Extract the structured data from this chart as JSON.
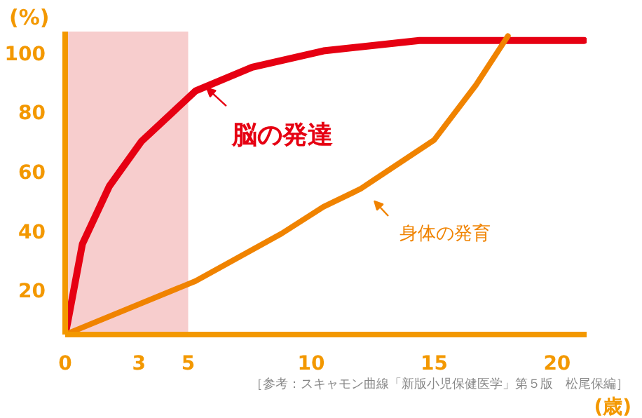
{
  "chart_data": {
    "type": "line",
    "xlim": [
      0,
      21.2
    ],
    "ylim": [
      5,
      107
    ],
    "xticks": [
      0,
      3,
      5,
      10,
      15,
      20
    ],
    "yticks": [
      20,
      40,
      60,
      80,
      100
    ],
    "xlabel": "(歳)",
    "ylabel": "(%)",
    "grid": false,
    "marker": "none",
    "line_style": "solid",
    "bands": [
      {
        "axis": "x",
        "from": 0,
        "to": 5,
        "color": "#f7cdcd"
      }
    ],
    "series": [
      {
        "name": "脳の発達",
        "color": "#e60012",
        "x": [
          0,
          0.1,
          0.7,
          1.8,
          3.1,
          5.3,
          7.6,
          10.5,
          14.4,
          21.1
        ],
        "values": [
          5,
          9,
          35.5,
          55,
          70,
          87,
          95,
          100.5,
          104,
          104
        ]
      },
      {
        "name": "身体の発育",
        "color": "#f08300",
        "x": [
          0,
          5.3,
          8.8,
          10.5,
          12,
          15,
          16.7,
          18
        ],
        "values": [
          5,
          23,
          39,
          48,
          54,
          70.5,
          89,
          105.5
        ]
      }
    ],
    "annotations": [
      "［参考：スキャモン曲線「新版小児保健医学」第５版　松尾保編］"
    ]
  }
}
